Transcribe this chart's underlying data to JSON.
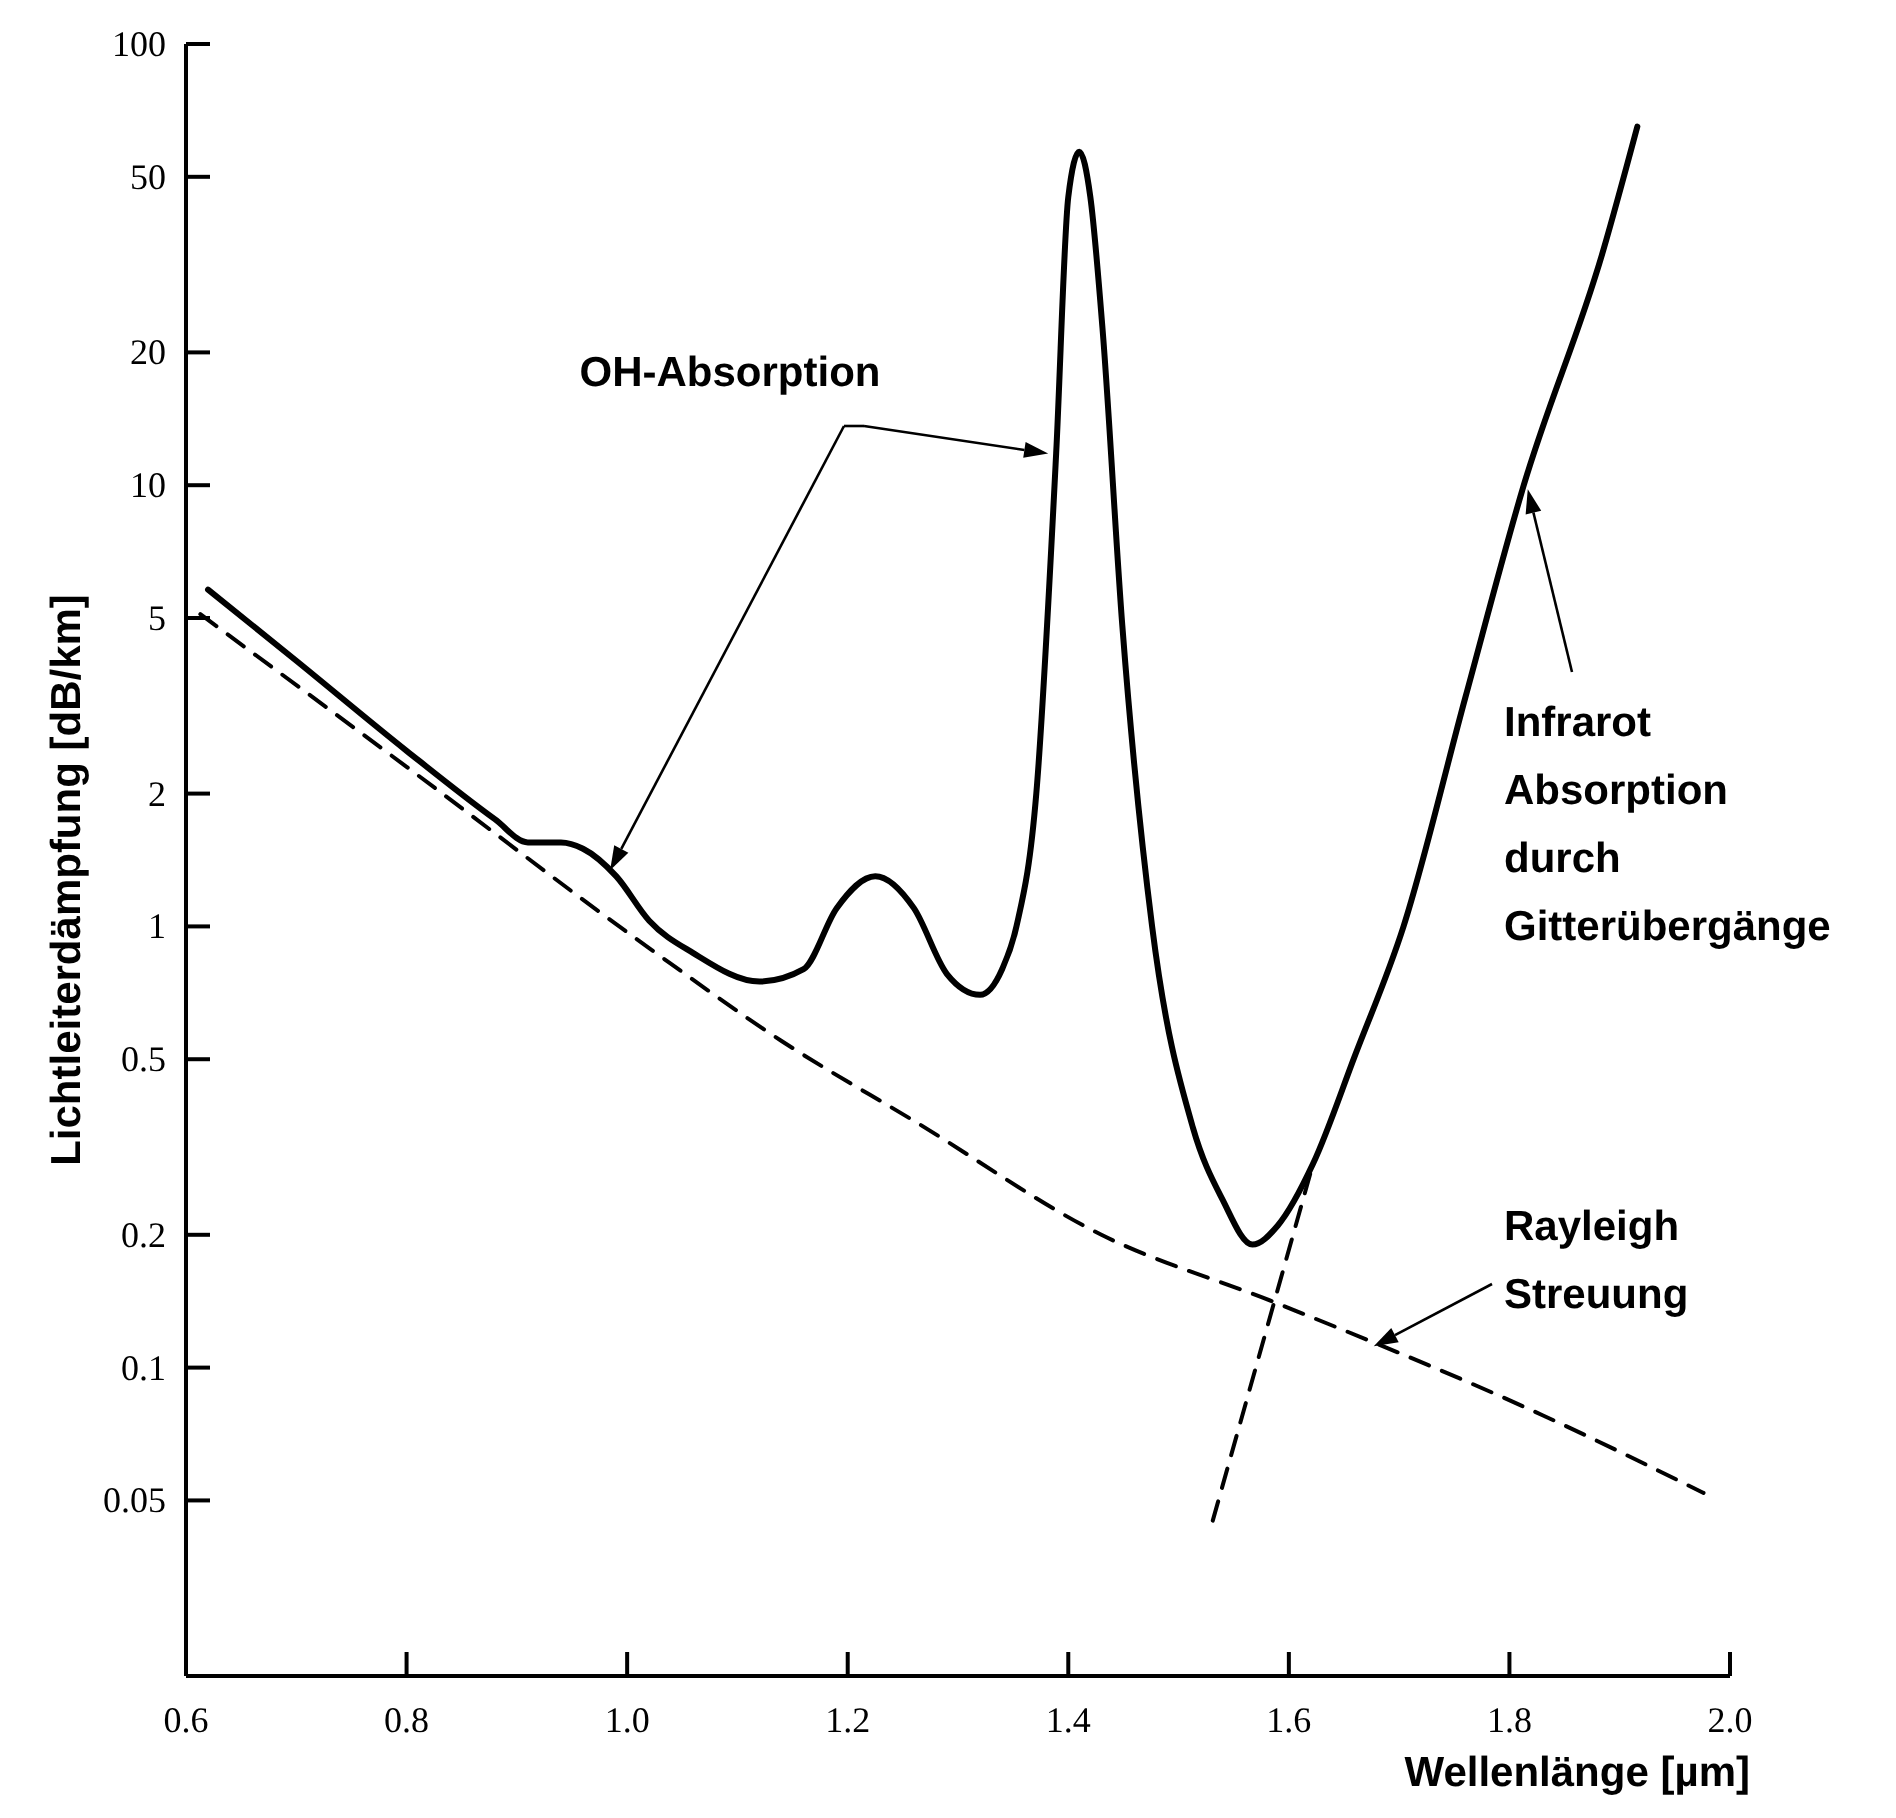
{
  "chart_data": {
    "type": "line",
    "xlabel": "Wellenlänge [µm]",
    "ylabel": "Lichtleiterdämpfung [dB/km]",
    "log": "y",
    "grid": false,
    "marker": "none",
    "xlim": [
      0.6,
      2.0
    ],
    "xticks": [
      0.6,
      0.8,
      {
        "value": 1.0,
        "label": "1.0"
      },
      1.2,
      1.4,
      1.6,
      1.8,
      {
        "value": 2.0,
        "label": "2.0"
      }
    ],
    "ylim": [
      0.02,
      100
    ],
    "yticks": [
      0.05,
      0.1,
      0.2,
      0.5,
      1,
      2,
      5,
      10,
      20,
      50,
      100
    ],
    "series": [
      {
        "color": "#000000",
        "line_style": "solid",
        "x": [
          0.62,
          0.7,
          0.8,
          0.88,
          0.91,
          0.94,
          0.96,
          0.99,
          1.02,
          1.06,
          1.12,
          1.16,
          1.19,
          1.225,
          1.26,
          1.29,
          1.32,
          1.34,
          1.353,
          1.371,
          1.389,
          1.4,
          1.41,
          1.42,
          1.431,
          1.449,
          1.476,
          1.513,
          1.54,
          1.567,
          1.59,
          1.622,
          1.66,
          1.704,
          1.76,
          1.813,
          1.885,
          1.916
        ],
        "values": [
          5.8,
          4.0,
          2.5,
          1.75,
          1.55,
          1.55,
          1.5,
          1.3,
          1.03,
          0.87,
          0.75,
          0.8,
          1.1,
          1.3,
          1.1,
          0.78,
          0.7,
          0.8,
          1.0,
          2.0,
          11.8,
          45,
          57,
          45,
          22.7,
          4.8,
          1.0,
          0.35,
          0.24,
          0.19,
          0.21,
          0.29,
          0.51,
          1.0,
          3.3,
          10,
          34,
          65
        ]
      },
      {
        "color": "#000000",
        "line_style": "dashed",
        "x": [
          0.613,
          0.8,
          1.018,
          1.14,
          1.262,
          1.43,
          1.589,
          1.83,
          1.976
        ],
        "values": [
          5.1,
          2.3,
          0.9,
          0.55,
          0.36,
          0.2,
          0.14,
          0.078,
          0.052
        ]
      },
      {
        "color": "#000000",
        "line_style": "dashed",
        "x": [
          1.531,
          1.622
        ],
        "values": [
          0.045,
          0.29
        ]
      }
    ],
    "annotations": [
      "OH-Absorption",
      "Infrarot\nAbsorption\ndurch\nGitterübergänge",
      "Rayleigh\nStreuung"
    ]
  }
}
